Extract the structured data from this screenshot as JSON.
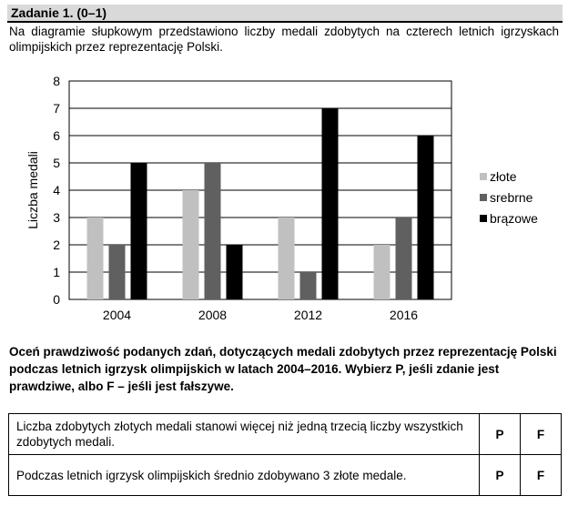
{
  "header": {
    "title": "Zadanie 1. (0–1)"
  },
  "intro": "Na diagramie słupkowym przedstawiono liczby medali zdobytych na czterech letnich igrzyskach olimpijskich przez reprezentację Polski.",
  "chart_data": {
    "type": "bar",
    "categories": [
      "2004",
      "2008",
      "2012",
      "2016"
    ],
    "series": [
      {
        "name": "złote",
        "values": [
          3,
          4,
          3,
          2
        ],
        "color": "#c0c0c0"
      },
      {
        "name": "srebrne",
        "values": [
          2,
          5,
          1,
          3
        ],
        "color": "#606060"
      },
      {
        "name": "brązowe",
        "values": [
          5,
          2,
          7,
          6
        ],
        "color": "#000000"
      }
    ],
    "title": "",
    "xlabel": "",
    "ylabel": "Liczba medali",
    "ylim": [
      0,
      8
    ],
    "yticks": [
      "0",
      "1",
      "2",
      "3",
      "4",
      "5",
      "6",
      "7",
      "8"
    ],
    "grid": true,
    "legend": "right"
  },
  "instruction": "Oceń prawdziwość podanych zdań, dotyczących medali zdobytych przez reprezentację Polski podczas letnich igrzysk olimpijskich w latach 2004–2016. Wybierz P, jeśli zdanie jest prawdziwe, albo F – jeśli jest fałszywe.",
  "statements": [
    {
      "text": "Liczba zdobytych złotych medali stanowi więcej niż jedną trzecią liczby wszystkich zdobytych medali.",
      "p": "P",
      "f": "F"
    },
    {
      "text": "Podczas letnich igrzysk olimpijskich średnio zdobywano 3 złote medale.",
      "p": "P",
      "f": "F"
    }
  ]
}
